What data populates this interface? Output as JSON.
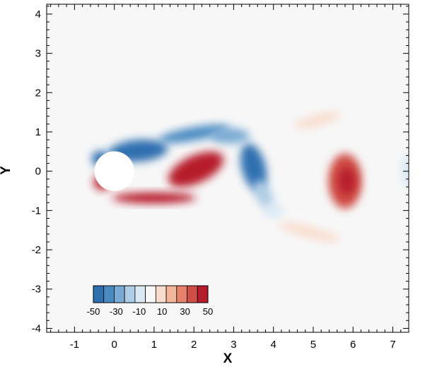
{
  "chart_data": {
    "type": "heatmap",
    "xlabel": "X",
    "ylabel": "Y",
    "xlim": [
      -1.7,
      7.4
    ],
    "ylim": [
      -4.1,
      4.25
    ],
    "x_ticks": [
      -1,
      0,
      1,
      2,
      3,
      4,
      5,
      6,
      7
    ],
    "y_ticks": [
      -4,
      -3,
      -2,
      -1,
      0,
      1,
      2,
      3,
      4
    ],
    "x_tick_labels": [
      "-1",
      "0",
      "1",
      "2",
      "3",
      "4",
      "5",
      "6",
      "7"
    ],
    "y_tick_labels": [
      "-4",
      "-3",
      "-2",
      "-1",
      "0",
      "1",
      "2",
      "3",
      "4"
    ],
    "cylinder": {
      "center": [
        0.0,
        0.0
      ],
      "radius": 0.5
    },
    "colorbar": {
      "range": [
        -50,
        50
      ],
      "levels": [
        -50,
        -40,
        -30,
        -20,
        -10,
        0,
        10,
        20,
        30,
        40,
        50
      ],
      "tick_labels": [
        "-50",
        "-30",
        "-10",
        "10",
        "30",
        "50"
      ],
      "colors": [
        "#2e6fb0",
        "#4a8ac2",
        "#7aabd4",
        "#aecde6",
        "#dbe9f5",
        "#f7f7f7",
        "#fadccd",
        "#f4b69a",
        "#e6826a",
        "#cf4e45",
        "#b71c2c"
      ]
    },
    "vortices": [
      {
        "x": 0.6,
        "y": 0.52,
        "rx": 0.75,
        "ry": 0.28,
        "value": -50,
        "angle": -5
      },
      {
        "x": -0.35,
        "y": 0.32,
        "rx": 0.22,
        "ry": 0.2,
        "value": -50,
        "angle": 0
      },
      {
        "x": 2.0,
        "y": 0.95,
        "rx": 0.9,
        "ry": 0.17,
        "value": -42,
        "angle": -10
      },
      {
        "x": 2.9,
        "y": 0.9,
        "rx": 0.5,
        "ry": 0.2,
        "value": -35,
        "angle": 0
      },
      {
        "x": 3.5,
        "y": 0.1,
        "rx": 0.3,
        "ry": 0.62,
        "value": -50,
        "angle": -15
      },
      {
        "x": 3.75,
        "y": -0.6,
        "rx": 0.2,
        "ry": 0.4,
        "value": -20,
        "angle": -25
      },
      {
        "x": 2.05,
        "y": 0.05,
        "rx": 0.75,
        "ry": 0.35,
        "value": 50,
        "angle": -25
      },
      {
        "x": 1.0,
        "y": -0.68,
        "rx": 1.05,
        "ry": 0.14,
        "value": 50,
        "angle": 0
      },
      {
        "x": -0.3,
        "y": -0.28,
        "rx": 0.22,
        "ry": 0.2,
        "value": 50,
        "angle": 0
      },
      {
        "x": 5.8,
        "y": -0.25,
        "rx": 0.42,
        "ry": 0.7,
        "value": 38,
        "angle": 0
      },
      {
        "x": 5.85,
        "y": -0.25,
        "rx": 0.22,
        "ry": 0.35,
        "value": 45,
        "angle": 0
      },
      {
        "x": 4.9,
        "y": -1.55,
        "rx": 0.8,
        "ry": 0.14,
        "value": 14,
        "angle": 15
      },
      {
        "x": 5.1,
        "y": 1.3,
        "rx": 0.6,
        "ry": 0.14,
        "value": 10,
        "angle": -15
      },
      {
        "x": 4.0,
        "y": -1.0,
        "rx": 0.25,
        "ry": 0.18,
        "value": -12,
        "angle": 0
      },
      {
        "x": 7.4,
        "y": 0.0,
        "rx": 0.2,
        "ry": 0.4,
        "value": -8,
        "angle": 0
      }
    ]
  }
}
